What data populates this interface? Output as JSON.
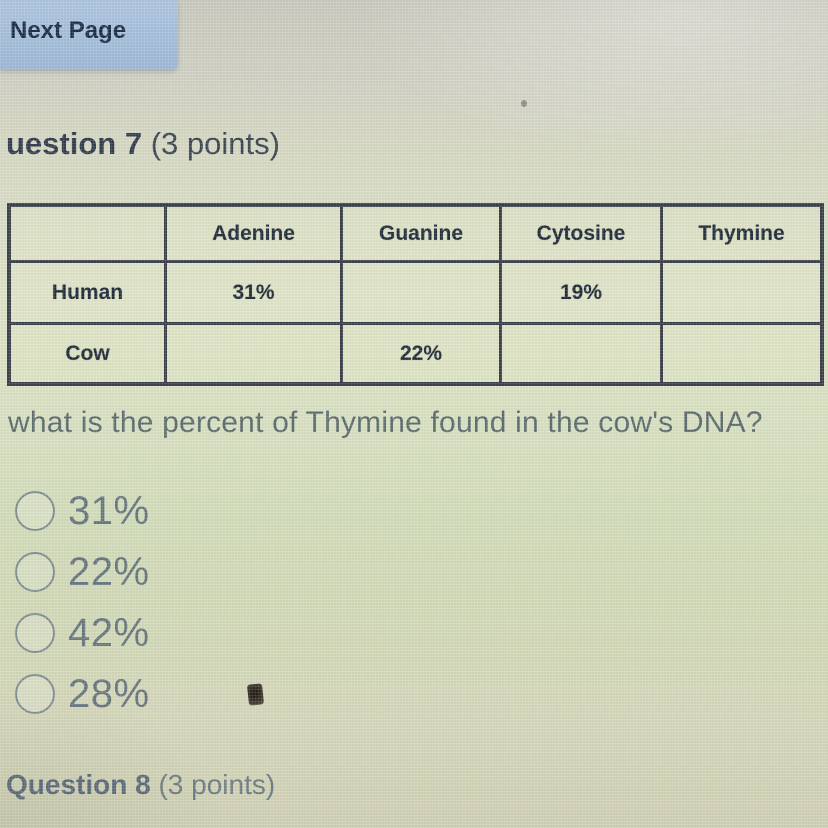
{
  "nav": {
    "next_page_label": "Next Page"
  },
  "question7": {
    "heading": "uestion 7",
    "points": "(3 points)",
    "prompt": "what is the percent of Thymine found in the cow's DNA?"
  },
  "table": {
    "headers": [
      "",
      "Adenine",
      "Guanine",
      "Cytosine",
      "Thymine"
    ],
    "rows": [
      [
        "Human",
        "31%",
        "",
        "19%",
        ""
      ],
      [
        "Cow",
        "",
        "22%",
        "",
        ""
      ]
    ]
  },
  "options": [
    "31%",
    "22%",
    "42%",
    "28%"
  ],
  "question8": {
    "heading": "Question 8",
    "points": "(3 points)"
  },
  "colors": {
    "next_button_bg": "#a6bedb",
    "next_button_text": "#1c2f47",
    "table_border": "#3a414b",
    "table_text": "#232e3c",
    "prompt_text": "#5c6c6e",
    "option_text": "#68777f",
    "radio_border": "#828f93",
    "page_bg": "#d6dcc0"
  }
}
